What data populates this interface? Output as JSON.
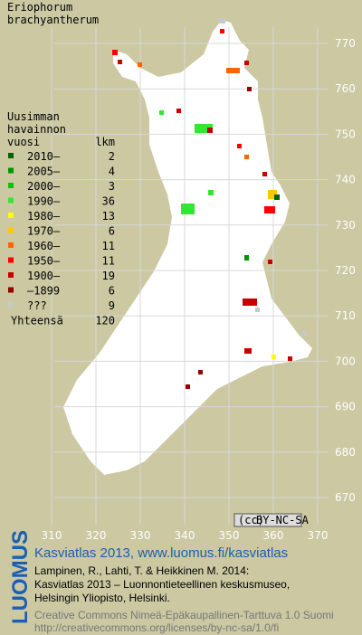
{
  "title": [
    "Eriophorum",
    "brachyantherum"
  ],
  "legend": {
    "heading": [
      "Uusimman",
      "havainnon",
      "vuosi"
    ],
    "count_heading": "lkm",
    "rows": [
      {
        "label": "2010–",
        "count": 2,
        "color": "#006400"
      },
      {
        "label": "2005–",
        "count": 4,
        "color": "#009600"
      },
      {
        "label": "2000–",
        "count": 3,
        "color": "#00c800"
      },
      {
        "label": "1990–",
        "count": 36,
        "color": "#32e632"
      },
      {
        "label": "1980–",
        "count": 13,
        "color": "#ffff00"
      },
      {
        "label": "1970–",
        "count": 6,
        "color": "#ffc800"
      },
      {
        "label": "1960–",
        "count": 11,
        "color": "#ff6400"
      },
      {
        "label": "1950–",
        "count": 11,
        "color": "#ff0000"
      },
      {
        "label": "1900–",
        "count": 19,
        "color": "#c80000"
      },
      {
        "label": "–1899",
        "count": 6,
        "color": "#960000"
      },
      {
        "label": "???",
        "count": 9,
        "color": "#c8c8c8"
      }
    ],
    "total": {
      "label": "Yhteensä",
      "count": 120
    }
  },
  "grid": {
    "y_labels": [
      770,
      760,
      750,
      740,
      730,
      720,
      710,
      700,
      690,
      680,
      670
    ],
    "x_labels": [
      310,
      320,
      330,
      340,
      350,
      360,
      370
    ]
  },
  "cc_badge": "BY-NC-SA",
  "footer": {
    "logo": "LUOMUS",
    "headline": "Kasviatlas 2013, www.luomus.fi/kasviatlas",
    "citation": [
      "Lampinen, R., Lahti, T. & Heikkinen M. 2014:",
      "Kasviatlas 2013 – Luonnontieteellinen keskusmuseo,",
      "Helsingin Yliopisto, Helsinki."
    ],
    "license": [
      "Creative Commons Nimeä-Epäkaupallinen-Tarttuva 1.0 Suomi",
      "http://creativecommons.org/licenses/by-nc-sa/1.0/fi"
    ]
  }
}
